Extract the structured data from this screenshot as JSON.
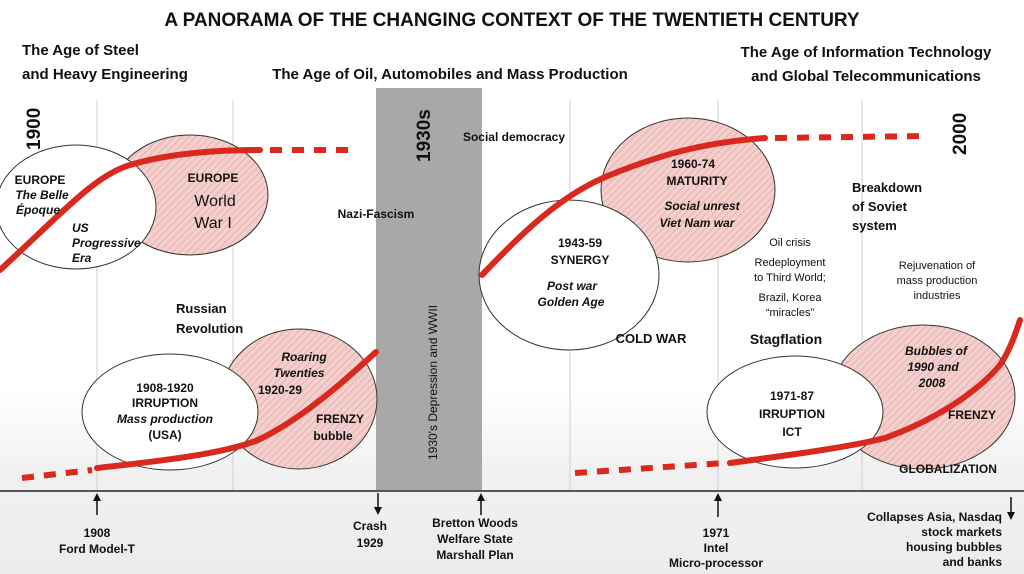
{
  "title": "A PANORAMA OF THE CHANGING CONTEXT OF THE TWENTIETH CENTURY",
  "ages": {
    "steel": [
      "The Age of Steel",
      "and Heavy Engineering"
    ],
    "oil": "The Age of Oil, Automobiles and Mass Production",
    "info": [
      "The Age of Information Technology",
      "and Global Telecommunications"
    ]
  },
  "years": {
    "start": "1900",
    "end": "2000",
    "thirties": "1930s"
  },
  "depression_label": "1930's Depression and WWII",
  "labels": {
    "europe_belle": [
      "EUROPE",
      "The Belle",
      "Époque"
    ],
    "us_progressive": [
      "US",
      "Progressive",
      "Era"
    ],
    "europe_ww1": [
      "EUROPE",
      "World",
      "War I"
    ],
    "russian_rev": [
      "Russian",
      "Revolution"
    ],
    "nazi_fascism": "Nazi-Fascism",
    "social_democracy": "Social democracy",
    "irruption1": [
      "1908-1920",
      "IRRUPTION",
      "Mass production",
      "(USA)"
    ],
    "roaring": [
      "Roaring",
      "Twenties",
      "1920-29"
    ],
    "frenzy1": [
      "FRENZY",
      "bubble"
    ],
    "synergy": [
      "1943-59",
      "SYNERGY",
      "Post war",
      "Golden Age"
    ],
    "maturity": [
      "1960-74",
      "MATURITY",
      "Social unrest",
      "Viet Nam war"
    ],
    "cold_war": "COLD WAR",
    "soviet": [
      "Breakdown",
      "of Soviet",
      "system"
    ],
    "oil_crisis": [
      "Oil crisis",
      "Redeployment",
      "to Third World;",
      "Brazil, Korea",
      "“miracles”"
    ],
    "rejuvenation": [
      "Rejuvenation of",
      "mass production",
      "industries"
    ],
    "stagflation": "Stagflation",
    "irruption2": [
      "1971-87",
      "IRRUPTION",
      "ICT"
    ],
    "bubbles": [
      "Bubbles of",
      "1990 and",
      "2008"
    ],
    "frenzy2": "FRENZY",
    "globalization": "GLOBALIZATION"
  },
  "events": {
    "ford": [
      "1908",
      "Ford  Model-T"
    ],
    "crash": [
      "Crash",
      "1929"
    ],
    "bretton": [
      "Bretton Woods",
      "Welfare State",
      "Marshall Plan"
    ],
    "intel": [
      "1971",
      "Intel",
      "Micro-processor"
    ],
    "collapses": [
      "Collapses Asia, Nasdaq",
      "stock markets",
      "housing bubbles",
      "and banks"
    ]
  },
  "colors": {
    "curve": "#d9291f",
    "bubble_fill": "#f3cfcd",
    "bubble_hatch": "#e8a9a5",
    "depression_band": "#a8a8a8",
    "axis": "#222222"
  }
}
